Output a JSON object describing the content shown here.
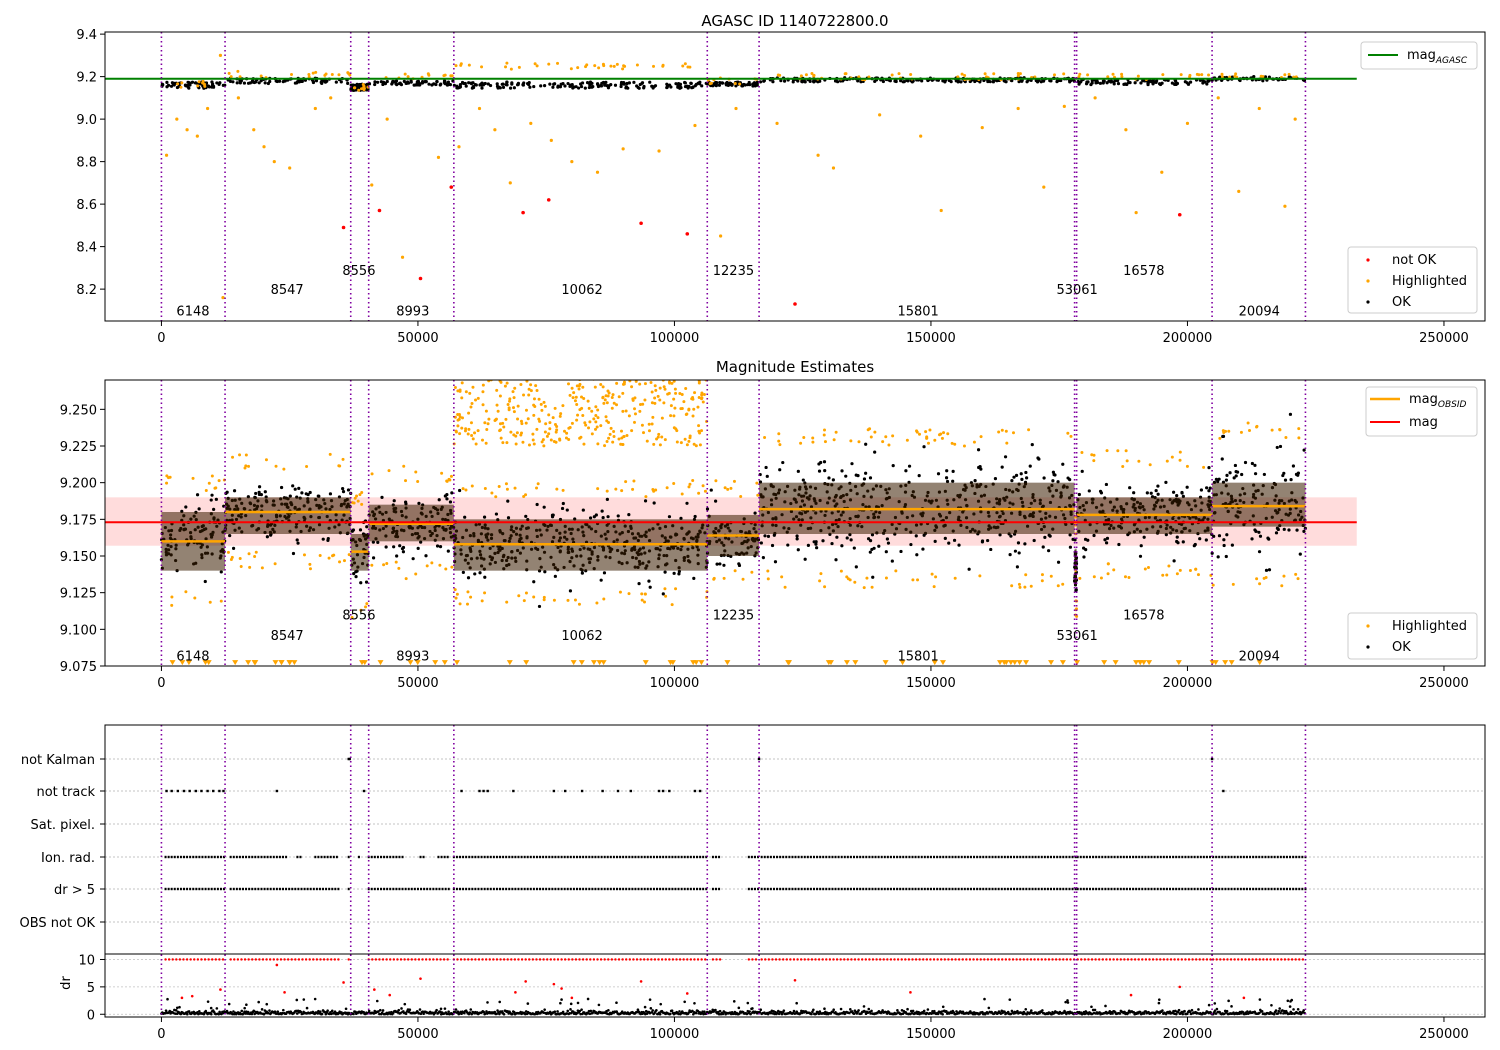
{
  "figure": {
    "title": "AGASC ID 1140722800.0"
  },
  "chart_data": [
    {
      "type": "scatter",
      "title": "AGASC ID 1140722800.0",
      "xlim": [
        -11000,
        258000
      ],
      "ylim": [
        8.05,
        9.41
      ],
      "x_ticks": [
        0,
        50000,
        100000,
        150000,
        200000,
        250000
      ],
      "x_tick_labels": [
        "0",
        "50000",
        "100000",
        "150000",
        "200000",
        "250000"
      ],
      "y_ticks": [
        8.2,
        8.4,
        8.6,
        8.8,
        9.0,
        9.2,
        9.4
      ],
      "y_tick_labels": [
        "8.2",
        "8.4",
        "8.6",
        "8.8",
        "9.0",
        "9.2",
        "9.4"
      ],
      "reference_line": {
        "label": "mag_AGASC",
        "label_main": "mag",
        "label_sub": "AGASC",
        "y": 9.19,
        "x_range": [
          0,
          233000
        ],
        "color": "#008000"
      },
      "obsid_boundaries": [
        0,
        12400,
        36900,
        40400,
        57000,
        106400,
        116500,
        178000,
        178400,
        204800,
        223000
      ],
      "obsid_labels": [
        {
          "text": "6148",
          "x": 6148,
          "y": 8.1
        },
        {
          "text": "8547",
          "x": 24500,
          "y": 8.2
        },
        {
          "text": "8556",
          "x": 38500,
          "y": 8.29
        },
        {
          "text": "8993",
          "x": 49000,
          "y": 8.1
        },
        {
          "text": "10062",
          "x": 82000,
          "y": 8.2
        },
        {
          "text": "12235",
          "x": 111500,
          "y": 8.29
        },
        {
          "text": "15801",
          "x": 147500,
          "y": 8.1
        },
        {
          "text": "53061",
          "x": 178500,
          "y": 8.2
        },
        {
          "text": "16578",
          "x": 191500,
          "y": 8.29
        },
        {
          "text": "20094",
          "x": 214000,
          "y": 8.1
        }
      ],
      "segments": [
        {
          "x0": 0,
          "x1": 12400,
          "mean": 9.16,
          "spread": 0.03,
          "highlight_y": 9.165
        },
        {
          "x0": 12400,
          "x1": 36900,
          "mean": 9.18,
          "spread": 0.025,
          "highlight_y": 9.21
        },
        {
          "x0": 36900,
          "x1": 40400,
          "mean": 9.15,
          "spread": 0.03,
          "highlight_y": 9.15
        },
        {
          "x0": 40400,
          "x1": 57000,
          "mean": 9.17,
          "spread": 0.02,
          "highlight_y": 9.2
        },
        {
          "x0": 57000,
          "x1": 106400,
          "mean": 9.16,
          "spread": 0.03,
          "highlight_y": 9.25
        },
        {
          "x0": 106400,
          "x1": 116500,
          "mean": 9.165,
          "spread": 0.02,
          "highlight_y": 9.18
        },
        {
          "x0": 116500,
          "x1": 178000,
          "mean": 9.185,
          "spread": 0.02,
          "highlight_y": 9.2
        },
        {
          "x0": 178400,
          "x1": 204800,
          "mean": 9.175,
          "spread": 0.025,
          "highlight_y": 9.2
        },
        {
          "x0": 204800,
          "x1": 223000,
          "mean": 9.19,
          "spread": 0.02,
          "highlight_y": 9.21
        }
      ],
      "series": [
        {
          "name": "not OK",
          "color": "#ff0000",
          "points": [
            [
              35500,
              8.49
            ],
            [
              42500,
              8.57
            ],
            [
              50500,
              8.25
            ],
            [
              56500,
              8.68
            ],
            [
              70500,
              8.56
            ],
            [
              75500,
              8.62
            ],
            [
              93500,
              8.51
            ],
            [
              102500,
              8.46
            ],
            [
              123500,
              8.13
            ],
            [
              198500,
              8.55
            ]
          ]
        },
        {
          "name": "Highlighted",
          "color": "#ffa500",
          "points": [
            [
              1000,
              8.83
            ],
            [
              3000,
              9.0
            ],
            [
              5000,
              8.95
            ],
            [
              7000,
              8.92
            ],
            [
              9000,
              9.05
            ],
            [
              11500,
              9.3
            ],
            [
              12000,
              8.16
            ],
            [
              15000,
              9.1
            ],
            [
              18000,
              8.95
            ],
            [
              20000,
              8.87
            ],
            [
              22000,
              8.8
            ],
            [
              25000,
              8.77
            ],
            [
              30000,
              9.05
            ],
            [
              33000,
              9.1
            ],
            [
              41000,
              8.69
            ],
            [
              44000,
              9.0
            ],
            [
              47000,
              8.35
            ],
            [
              54000,
              8.82
            ],
            [
              58000,
              8.87
            ],
            [
              62000,
              9.05
            ],
            [
              65000,
              8.95
            ],
            [
              68000,
              8.7
            ],
            [
              72000,
              8.98
            ],
            [
              76000,
              8.9
            ],
            [
              80000,
              8.8
            ],
            [
              85000,
              8.75
            ],
            [
              90000,
              8.86
            ],
            [
              97000,
              8.85
            ],
            [
              104000,
              8.97
            ],
            [
              109000,
              8.45
            ],
            [
              112000,
              9.05
            ],
            [
              120000,
              8.98
            ],
            [
              128000,
              8.83
            ],
            [
              131000,
              8.77
            ],
            [
              140000,
              9.02
            ],
            [
              148000,
              8.92
            ],
            [
              152000,
              8.57
            ],
            [
              160000,
              8.96
            ],
            [
              167000,
              9.05
            ],
            [
              172000,
              8.68
            ],
            [
              176000,
              9.06
            ],
            [
              182000,
              9.1
            ],
            [
              188000,
              8.95
            ],
            [
              190000,
              8.56
            ],
            [
              195000,
              8.75
            ],
            [
              200000,
              8.98
            ],
            [
              206000,
              9.1
            ],
            [
              210000,
              8.66
            ],
            [
              214000,
              9.05
            ],
            [
              219000,
              8.59
            ],
            [
              221000,
              9.0
            ]
          ]
        },
        {
          "name": "OK",
          "color": "#000000",
          "points": []
        }
      ],
      "legend_location": "lower right"
    },
    {
      "type": "scatter",
      "title": "Magnitude Estimates",
      "xlim": [
        -11000,
        258000
      ],
      "ylim": [
        9.075,
        9.27
      ],
      "x_ticks": [
        0,
        50000,
        100000,
        150000,
        200000,
        250000
      ],
      "x_tick_labels": [
        "0",
        "50000",
        "100000",
        "150000",
        "200000",
        "250000"
      ],
      "y_ticks": [
        9.075,
        9.1,
        9.125,
        9.15,
        9.175,
        9.2,
        9.225,
        9.25
      ],
      "y_tick_labels": [
        "9.075",
        "9.100",
        "9.125",
        "9.150",
        "9.175",
        "9.200",
        "9.225",
        "9.250"
      ],
      "overall_mag": {
        "label": "mag",
        "y": 9.173,
        "band": [
          9.157,
          9.19
        ],
        "x_range": [
          0,
          233000
        ],
        "color": "#ff0000"
      },
      "obsid_mag_label": {
        "label_main": "mag",
        "label_sub": "OBSID",
        "color": "#ffa500"
      },
      "obsid_mags": [
        {
          "obsid": "6148",
          "x0": 0,
          "x1": 12400,
          "mag": 9.16,
          "lo": 9.128,
          "hi": 9.193,
          "band": [
            9.14,
            9.18
          ]
        },
        {
          "obsid": "8547",
          "x0": 12400,
          "x1": 36900,
          "mag": 9.18,
          "lo": 9.153,
          "hi": 9.208,
          "band": [
            9.165,
            9.19
          ]
        },
        {
          "obsid": "8556",
          "x0": 36900,
          "x1": 40400,
          "mag": 9.153,
          "lo": 9.12,
          "hi": 9.182,
          "band": [
            9.14,
            9.165
          ]
        },
        {
          "obsid": "8993",
          "x0": 40400,
          "x1": 57000,
          "mag": 9.172,
          "lo": 9.146,
          "hi": 9.2,
          "band": [
            9.16,
            9.185
          ]
        },
        {
          "obsid": "10062",
          "x0": 57000,
          "x1": 106400,
          "mag": 9.158,
          "lo": 9.128,
          "hi": 9.19,
          "band": [
            9.14,
            9.175
          ]
        },
        {
          "obsid": "12235",
          "x0": 106400,
          "x1": 116500,
          "mag": 9.164,
          "lo": 9.14,
          "hi": 9.19,
          "band": [
            9.15,
            9.178
          ]
        },
        {
          "obsid": "15801",
          "x0": 116500,
          "x1": 178000,
          "mag": 9.182,
          "lo": 9.14,
          "hi": 9.225,
          "band": [
            9.165,
            9.2
          ]
        },
        {
          "obsid": "53061",
          "x0": 178000,
          "x1": 178400,
          "mag": 9.14,
          "lo": 9.12,
          "hi": 9.165,
          "band": [
            9.13,
            9.155
          ]
        },
        {
          "obsid": "16578",
          "x0": 178400,
          "x1": 204800,
          "mag": 9.178,
          "lo": 9.145,
          "hi": 9.21,
          "band": [
            9.165,
            9.19
          ]
        },
        {
          "obsid": "20094",
          "x0": 204800,
          "x1": 223000,
          "mag": 9.184,
          "lo": 9.14,
          "hi": 9.23,
          "band": [
            9.17,
            9.2
          ]
        }
      ],
      "highlight_regions": [
        {
          "x0": 57000,
          "x1": 106400,
          "lo": 9.225,
          "hi": 9.27
        }
      ],
      "obsid_labels": [
        {
          "text": "6148",
          "x": 6148,
          "y": 9.082
        },
        {
          "text": "8547",
          "x": 24500,
          "y": 9.096
        },
        {
          "text": "8556",
          "x": 38500,
          "y": 9.11
        },
        {
          "text": "8993",
          "x": 49000,
          "y": 9.082
        },
        {
          "text": "10062",
          "x": 82000,
          "y": 9.096
        },
        {
          "text": "12235",
          "x": 111500,
          "y": 9.11
        },
        {
          "text": "15801",
          "x": 147500,
          "y": 9.082
        },
        {
          "text": "53061",
          "x": 178500,
          "y": 9.096
        },
        {
          "text": "16578",
          "x": 191500,
          "y": 9.11
        },
        {
          "text": "20094",
          "x": 214000,
          "y": 9.082
        }
      ],
      "series": [
        {
          "name": "Highlighted",
          "color": "#ffa500"
        },
        {
          "name": "OK",
          "color": "#000000"
        }
      ],
      "legend_location": "lower right"
    },
    {
      "type": "scatter",
      "title": "",
      "xlim": [
        -11000,
        258000
      ],
      "x_ticks": [
        0,
        50000,
        100000,
        150000,
        200000,
        250000
      ],
      "x_tick_labels": [
        "0",
        "50000",
        "100000",
        "150000",
        "200000",
        "250000"
      ],
      "flag_rows": [
        "not Kalman",
        "not track",
        "Sat. pixel.",
        "Ion. rad.",
        "dr > 5",
        "OBS not OK"
      ],
      "flags": {
        "not Kalman": [
          36500,
          36700,
          116500,
          204800
        ],
        "not track": [
          1000,
          2000,
          3200,
          4400,
          5500,
          6700,
          7800,
          9000,
          10100,
          11300,
          12100,
          22500,
          39500,
          58500,
          62000,
          62800,
          63600,
          68600,
          76500,
          78700,
          82000,
          86000,
          89000,
          91500,
          97000,
          97800,
          99000,
          104000,
          105000,
          207000
        ],
        "Sat. pixel.": [],
        "Ion. rad.": [
          [
            800,
            12400
          ],
          [
            13500,
            24500
          ],
          [
            26500,
            27500
          ],
          [
            30000,
            34500
          ],
          [
            36500,
            37000
          ],
          [
            38500,
            38700
          ],
          [
            40400,
            47000
          ],
          [
            50500,
            51500
          ],
          [
            54000,
            56000
          ],
          [
            57000,
            106400
          ],
          [
            107500,
            109000
          ],
          [
            114500,
            116500
          ],
          [
            117000,
            178400
          ],
          [
            178600,
            204800
          ],
          [
            205000,
            223000
          ]
        ],
        "dr > 5": [
          [
            800,
            12400
          ],
          [
            13500,
            34500
          ],
          [
            36500,
            37000
          ],
          [
            40400,
            56000
          ],
          [
            57000,
            106400
          ],
          [
            107500,
            109000
          ],
          [
            114500,
            116500
          ],
          [
            117000,
            178400
          ],
          [
            178600,
            204800
          ],
          [
            205000,
            223000
          ]
        ],
        "OBS not OK": []
      },
      "dr_panel": {
        "ylabel": "dr",
        "ylim": [
          -0.5,
          11
        ],
        "y_ticks": [
          0,
          5,
          10
        ],
        "y_tick_labels": [
          "0",
          "5",
          "10"
        ],
        "capped_value": 10,
        "outliers": [
          [
            4000,
            3
          ],
          [
            6000,
            3.3
          ],
          [
            11500,
            4.5
          ],
          [
            22500,
            9
          ],
          [
            24000,
            4
          ],
          [
            35500,
            5.8
          ],
          [
            41500,
            4.5
          ],
          [
            44500,
            3.5
          ],
          [
            50500,
            6.5
          ],
          [
            69000,
            4
          ],
          [
            71000,
            6
          ],
          [
            76500,
            5.5
          ],
          [
            78000,
            4.7
          ],
          [
            80000,
            3
          ],
          [
            93500,
            6
          ],
          [
            102500,
            3.8
          ],
          [
            123500,
            6.2
          ],
          [
            146000,
            4
          ],
          [
            189000,
            3.5
          ],
          [
            198500,
            5
          ],
          [
            211000,
            3
          ]
        ]
      }
    }
  ],
  "legends": {
    "top": [
      "mag_AGASC"
    ],
    "top_scatter": [
      "not OK",
      "Highlighted",
      "OK"
    ],
    "middle": [
      "mag_OBSID",
      "mag"
    ],
    "middle_scatter": [
      "Highlighted",
      "OK"
    ]
  }
}
